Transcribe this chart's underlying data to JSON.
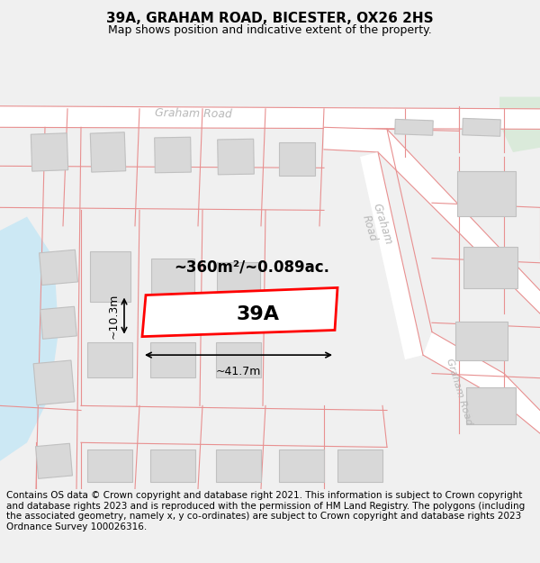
{
  "title": "39A, GRAHAM ROAD, BICESTER, OX26 2HS",
  "subtitle": "Map shows position and indicative extent of the property.",
  "footer": "Contains OS data © Crown copyright and database right 2021. This information is subject to Crown copyright and database rights 2023 and is reproduced with the permission of HM Land Registry. The polygons (including the associated geometry, namely x, y co-ordinates) are subject to Crown copyright and database rights 2023 Ordnance Survey 100026316.",
  "area_label": "~360m²/~0.089ac.",
  "label_39A": "39A",
  "dim_width": "~41.7m",
  "dim_height": "~10.3m",
  "road_color": "#f5a0a0",
  "road_line_color": "#e89090",
  "building_fill": "#d8d8d8",
  "building_edge": "#c0c0c0",
  "highlight_fill": "#ffffff",
  "highlight_edge": "#ff0000",
  "highlight_lw": 2.0,
  "road_label_color": "#aaaaaa",
  "water_color": "#cce8f4",
  "green_color": "#d8ead8",
  "map_bg": "#ffffff",
  "title_fontsize": 11,
  "subtitle_fontsize": 9,
  "footer_fontsize": 7.5
}
